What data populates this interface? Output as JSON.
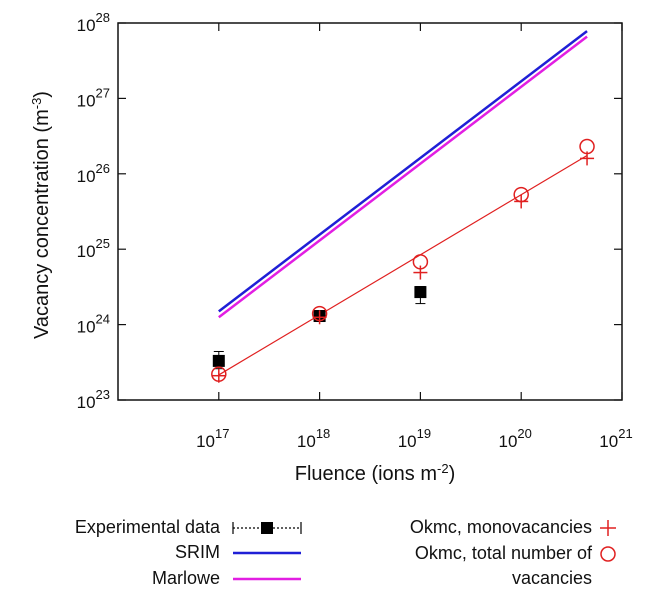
{
  "chart_data": {
    "type": "scatter",
    "title": "",
    "xlabel": "Fluence (ions m",
    "xlabel_sup": "-2",
    "xlabel_tail": ")",
    "ylabel": "Vacancy concentration (m",
    "ylabel_sup": "-3",
    "ylabel_tail": ")",
    "x_scale": "log",
    "y_scale": "log",
    "xlim": [
      1e+16,
      1e+21
    ],
    "ylim": [
      1e+23,
      1e+28
    ],
    "grid": false,
    "x_ticks": [
      {
        "base": "10",
        "exp": "17",
        "value": 1e+17
      },
      {
        "base": "10",
        "exp": "18",
        "value": 1e+18
      },
      {
        "base": "10",
        "exp": "19",
        "value": 1e+19
      },
      {
        "base": "10",
        "exp": "20",
        "value": 1e+20
      },
      {
        "base": "10",
        "exp": "21",
        "value": 1e+21
      }
    ],
    "y_ticks": [
      {
        "base": "10",
        "exp": "23",
        "value": 1e+23
      },
      {
        "base": "10",
        "exp": "24",
        "value": 1e+24
      },
      {
        "base": "10",
        "exp": "25",
        "value": 1e+25
      },
      {
        "base": "10",
        "exp": "26",
        "value": 1e+26
      },
      {
        "base": "10",
        "exp": "27",
        "value": 1e+27
      },
      {
        "base": "10",
        "exp": "28",
        "value": 1e+28
      }
    ],
    "series": [
      {
        "name": "Experimental data",
        "kind": "errorpoints",
        "color": "#000000",
        "x": [
          1e+17,
          1e+18,
          1e+19
        ],
        "y": [
          3.3e+23,
          1.3e+24,
          2.7e+24
        ],
        "err_low": [
          2.6e+23,
          1.15e+24,
          1.9e+24
        ],
        "err_high": [
          4.4e+23,
          1.45e+24,
          3.2e+24
        ]
      },
      {
        "name": "SRIM",
        "kind": "line",
        "color": "#1f1fd6",
        "x": [
          1e+17,
          4.5e+20
        ],
        "y": [
          1.5e+24,
          7.8e+27
        ]
      },
      {
        "name": "Marlowe",
        "kind": "line",
        "color": "#e21ee2",
        "x": [
          1e+17,
          4.5e+20
        ],
        "y": [
          1.25e+24,
          6.6e+27
        ]
      },
      {
        "name": "Okmc, monovacancies",
        "kind": "plus",
        "color": "#e02020",
        "x": [
          1e+17,
          1e+18,
          1e+19,
          1e+20,
          4.5e+20
        ],
        "y": [
          2.1e+23,
          1.25e+24,
          4.9e+24,
          4.3e+25,
          1.6e+26
        ]
      },
      {
        "name": "Okmc, total number of",
        "name_line2": "vacancies",
        "kind": "circle",
        "color": "#e02020",
        "x": [
          1e+17,
          1e+18,
          1e+19,
          1e+20,
          4.5e+20
        ],
        "y": [
          2.2e+23,
          1.4e+24,
          6.8e+24,
          5.3e+25,
          2.3e+26
        ]
      }
    ],
    "fit_line": {
      "color": "#e02020",
      "x": [
        1e+17,
        4.5e+20
      ],
      "y": [
        2.15e+23,
        1.75e+26
      ]
    },
    "legend_position": "below"
  }
}
